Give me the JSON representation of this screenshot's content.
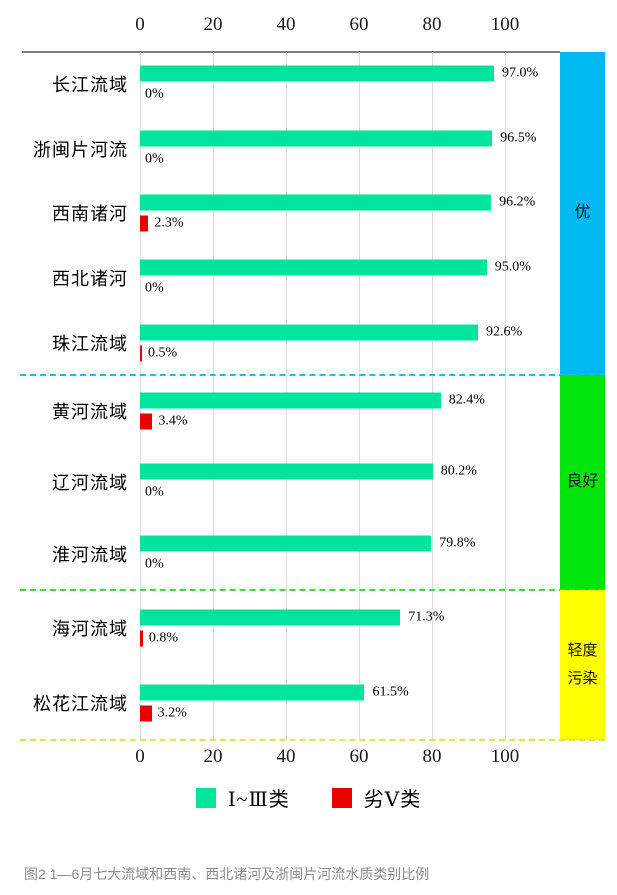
{
  "figure": {
    "caption": "图2  1—6月七大流域和西南、西北诸河及浙闽片河流水质类别比例"
  },
  "legend": {
    "items": [
      {
        "label": "Ⅰ~Ⅲ类",
        "color": "#00E49C"
      },
      {
        "label": "劣Ⅴ类",
        "color": "#EB0000"
      }
    ]
  },
  "chart_data": {
    "type": "bar",
    "orientation": "horizontal",
    "unit": "%",
    "xlim": [
      0,
      115
    ],
    "x_tick_labels": [
      "0",
      "20",
      "40",
      "60",
      "80",
      "100"
    ],
    "x_tick_values": [
      0,
      20,
      40,
      60,
      80,
      100
    ],
    "grid": true,
    "series_names": [
      "Ⅰ~Ⅲ类",
      "劣Ⅴ类"
    ],
    "colors": {
      "good_series": "#00E49C",
      "bad_series": "#EB0000",
      "grid": "#DCDCDC",
      "axis_line": "#7F7F7F"
    },
    "sections": [
      {
        "label": "优",
        "band_color": "#00B9F0",
        "divider_color": "#2FB9D4",
        "rows": [
          {
            "name": "长江流域",
            "good": 97.0,
            "good_label": "97.0%",
            "bad": 0,
            "bad_label": "0%"
          },
          {
            "name": "浙闽片河流",
            "good": 96.5,
            "good_label": "96.5%",
            "bad": 0,
            "bad_label": "0%"
          },
          {
            "name": "西南诸河",
            "good": 96.2,
            "good_label": "96.2%",
            "bad": 2.3,
            "bad_label": "2.3%"
          },
          {
            "name": "西北诸河",
            "good": 95.0,
            "good_label": "95.0%",
            "bad": 0,
            "bad_label": "0%"
          },
          {
            "name": "珠江流域",
            "good": 92.6,
            "good_label": "92.6%",
            "bad": 0.5,
            "bad_label": "0.5%"
          }
        ]
      },
      {
        "label": "良好",
        "band_color": "#00E40A",
        "divider_color": "#3BDD3B",
        "rows": [
          {
            "name": "黄河流域",
            "good": 82.4,
            "good_label": "82.4%",
            "bad": 3.4,
            "bad_label": "3.4%"
          },
          {
            "name": "辽河流域",
            "good": 80.2,
            "good_label": "80.2%",
            "bad": 0,
            "bad_label": "0%"
          },
          {
            "name": "淮河流域",
            "good": 79.8,
            "good_label": "79.8%",
            "bad": 0,
            "bad_label": "0%"
          }
        ]
      },
      {
        "label": "轻度污染",
        "band_color": "#FFFF00",
        "divider_color": "#E3E34A",
        "rows": [
          {
            "name": "海河流域",
            "good": 71.3,
            "good_label": "71.3%",
            "bad": 0.8,
            "bad_label": "0.8%"
          },
          {
            "name": "松花江流域",
            "good": 61.5,
            "good_label": "61.5%",
            "bad": 3.2,
            "bad_label": "3.2%"
          }
        ]
      }
    ]
  }
}
